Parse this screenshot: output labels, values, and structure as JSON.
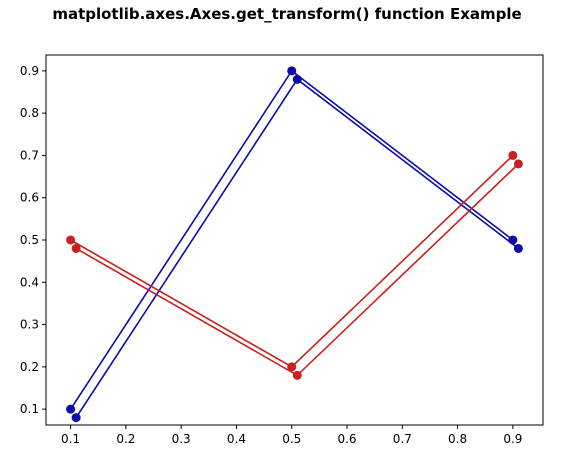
{
  "chart_data": {
    "type": "line",
    "title": "matplotlib.axes.Axes.get_transform() function Example",
    "xlabel": "",
    "ylabel": "",
    "xlim": [
      0.0555,
      0.9545
    ],
    "ylim": [
      0.0625,
      0.9375
    ],
    "x_ticks": [
      0.1,
      0.2,
      0.3,
      0.4,
      0.5,
      0.6,
      0.7,
      0.8,
      0.9
    ],
    "x_tick_labels": [
      "0.1",
      "0.2",
      "0.3",
      "0.4",
      "0.5",
      "0.6",
      "0.7",
      "0.8",
      "0.9"
    ],
    "y_ticks": [
      0.1,
      0.2,
      0.3,
      0.4,
      0.5,
      0.6,
      0.7,
      0.8,
      0.9
    ],
    "y_tick_labels": [
      "0.1",
      "0.2",
      "0.3",
      "0.4",
      "0.5",
      "0.6",
      "0.7",
      "0.8",
      "0.9"
    ],
    "grid": false,
    "series": [
      {
        "color": "#0b0ba8",
        "marker": "circle",
        "x": [
          0.1,
          0.5,
          0.9
        ],
        "y": [
          0.1,
          0.9,
          0.5
        ]
      },
      {
        "color": "#0b0ba8",
        "marker": "circle",
        "x": [
          0.11,
          0.51,
          0.91
        ],
        "y": [
          0.08,
          0.88,
          0.48
        ]
      },
      {
        "color": "#c8201f",
        "marker": "circle",
        "x": [
          0.1,
          0.5,
          0.9
        ],
        "y": [
          0.5,
          0.2,
          0.7
        ]
      },
      {
        "color": "#c8201f",
        "marker": "circle",
        "x": [
          0.11,
          0.51,
          0.91
        ],
        "y": [
          0.48,
          0.18,
          0.68
        ]
      }
    ]
  }
}
